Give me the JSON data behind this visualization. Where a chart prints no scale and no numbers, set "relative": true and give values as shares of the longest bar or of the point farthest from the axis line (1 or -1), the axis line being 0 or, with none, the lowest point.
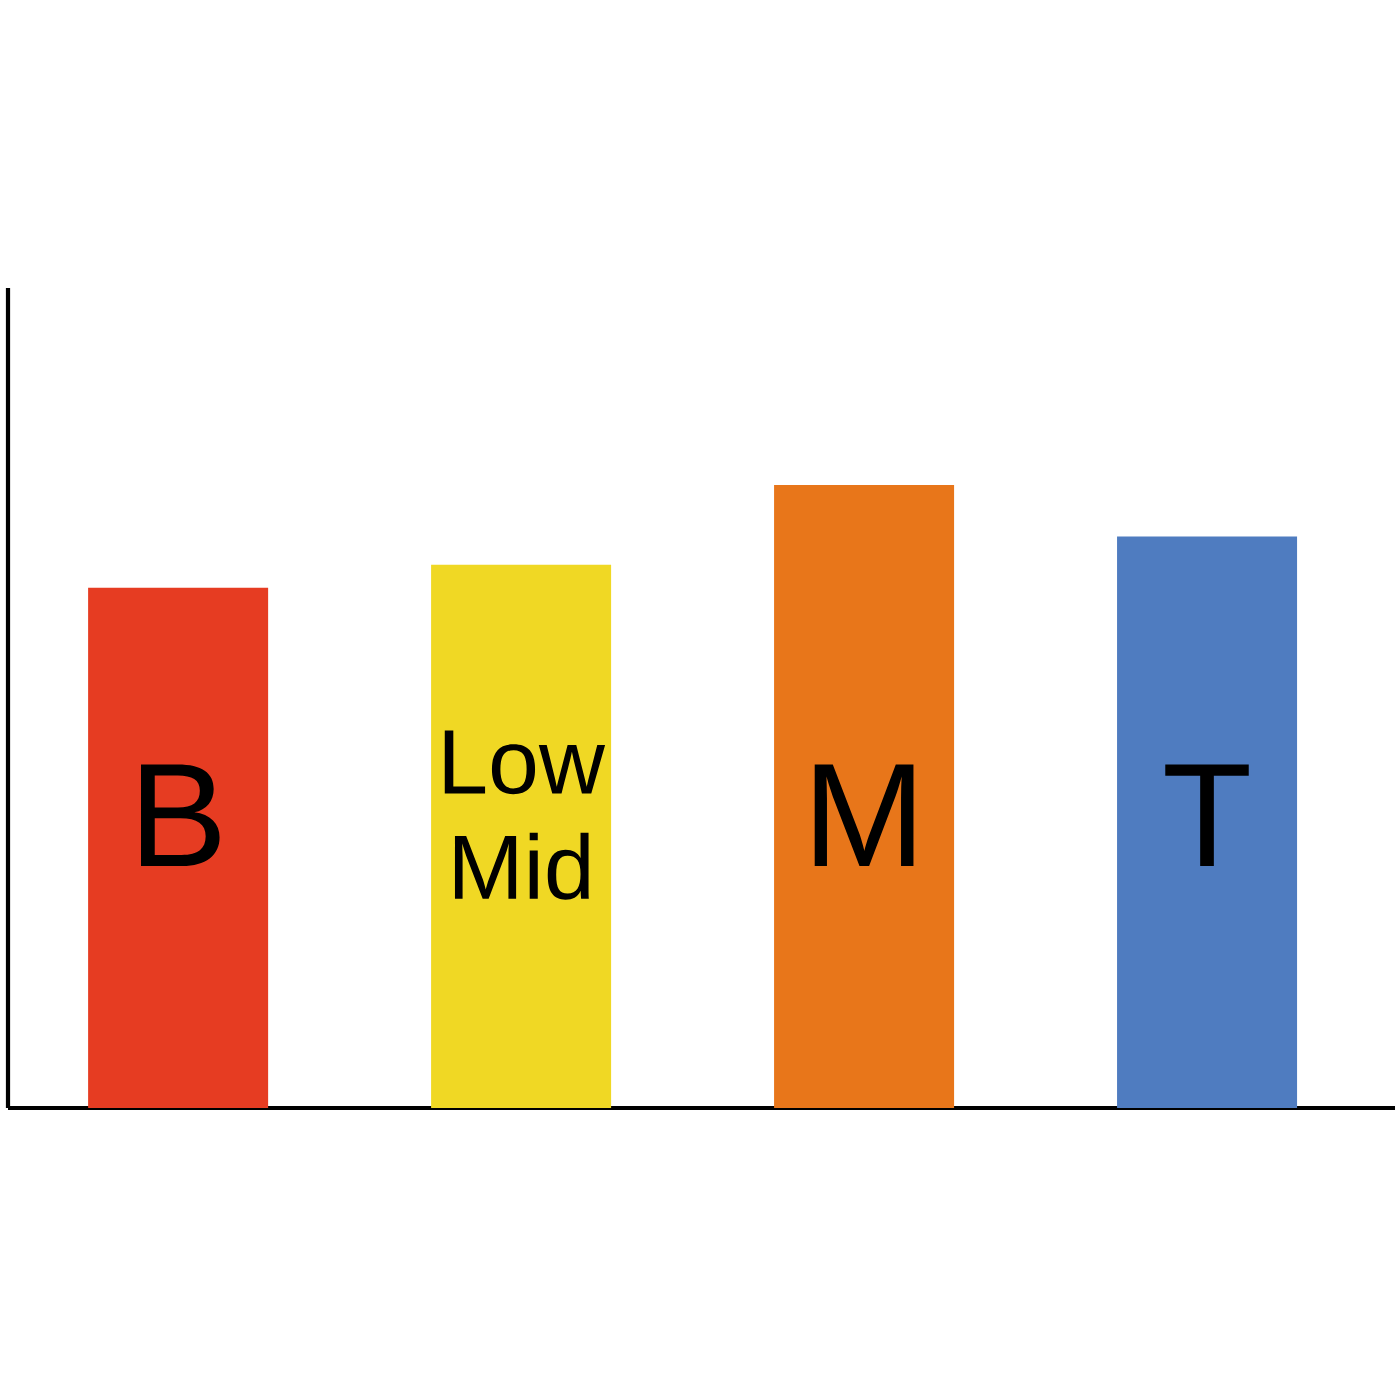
{
  "chart_data": {
    "type": "bar",
    "relative": true,
    "categories": [
      "B",
      "Low Mid",
      "M",
      "T"
    ],
    "values": [
      0.835,
      0.872,
      1,
      0.917
    ],
    "colors": [
      "#e63c22",
      "#f0d824",
      "#e8761a",
      "#4f7cc0"
    ]
  }
}
